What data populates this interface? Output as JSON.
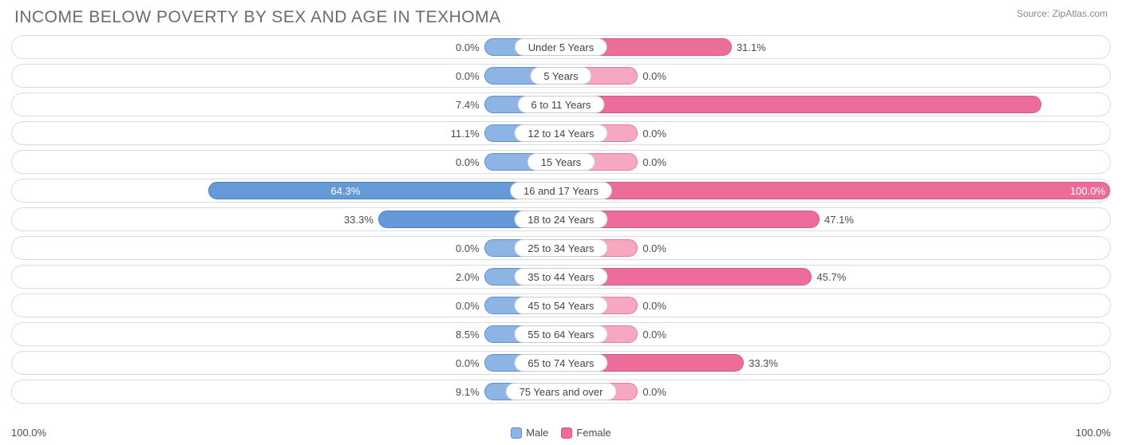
{
  "title": "INCOME BELOW POVERTY BY SEX AND AGE IN TEXHOMA",
  "source": "Source: ZipAtlas.com",
  "axis_max_label_left": "100.0%",
  "axis_max_label_right": "100.0%",
  "legend": {
    "male": "Male",
    "female": "Female"
  },
  "colors": {
    "male_fill": "#8eb4e3",
    "male_border": "#5a8fd6",
    "male_dark_fill": "#6699d8",
    "male_dark_border": "#4a7fc0",
    "female_fill": "#f5a8c0",
    "female_border": "#e77aa0",
    "female_dark_fill": "#ec6d9a",
    "female_dark_border": "#d65588",
    "row_border": "#dcdcdc",
    "pill_border": "#cccccc",
    "text": "#4d4d4d",
    "title_text": "#6b6b6b",
    "source_text": "#888888",
    "background": "#ffffff"
  },
  "chart": {
    "type": "diverging-bar",
    "axis_max": 100.0,
    "min_bar_pct": 14.0,
    "dark_threshold": 30.0,
    "label_inside_threshold": 55.0,
    "rows": [
      {
        "category": "Under 5 Years",
        "male": 0.0,
        "female": 31.1,
        "male_label": "0.0%",
        "female_label": "31.1%"
      },
      {
        "category": "5 Years",
        "male": 0.0,
        "female": 0.0,
        "male_label": "0.0%",
        "female_label": "0.0%"
      },
      {
        "category": "6 to 11 Years",
        "male": 7.4,
        "female": 87.5,
        "male_label": "7.4%",
        "female_label": "87.5%"
      },
      {
        "category": "12 to 14 Years",
        "male": 11.1,
        "female": 0.0,
        "male_label": "11.1%",
        "female_label": "0.0%"
      },
      {
        "category": "15 Years",
        "male": 0.0,
        "female": 0.0,
        "male_label": "0.0%",
        "female_label": "0.0%"
      },
      {
        "category": "16 and 17 Years",
        "male": 64.3,
        "female": 100.0,
        "male_label": "64.3%",
        "female_label": "100.0%"
      },
      {
        "category": "18 to 24 Years",
        "male": 33.3,
        "female": 47.1,
        "male_label": "33.3%",
        "female_label": "47.1%"
      },
      {
        "category": "25 to 34 Years",
        "male": 0.0,
        "female": 0.0,
        "male_label": "0.0%",
        "female_label": "0.0%"
      },
      {
        "category": "35 to 44 Years",
        "male": 2.0,
        "female": 45.7,
        "male_label": "2.0%",
        "female_label": "45.7%"
      },
      {
        "category": "45 to 54 Years",
        "male": 0.0,
        "female": 0.0,
        "male_label": "0.0%",
        "female_label": "0.0%"
      },
      {
        "category": "55 to 64 Years",
        "male": 8.5,
        "female": 0.0,
        "male_label": "8.5%",
        "female_label": "0.0%"
      },
      {
        "category": "65 to 74 Years",
        "male": 0.0,
        "female": 33.3,
        "male_label": "0.0%",
        "female_label": "33.3%"
      },
      {
        "category": "75 Years and over",
        "male": 9.1,
        "female": 0.0,
        "male_label": "9.1%",
        "female_label": "0.0%"
      }
    ]
  }
}
